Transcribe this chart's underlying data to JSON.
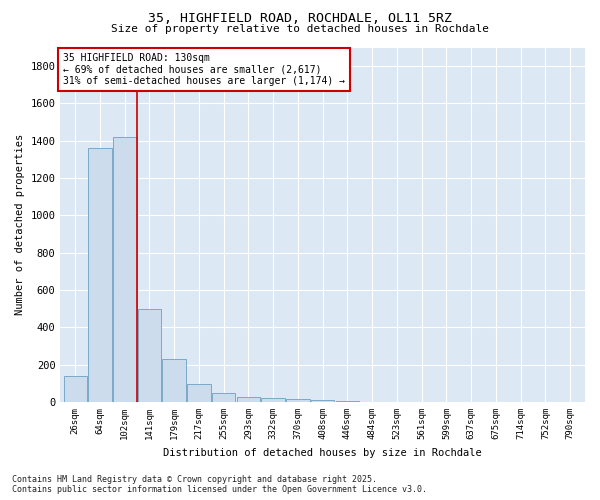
{
  "title_line1": "35, HIGHFIELD ROAD, ROCHDALE, OL11 5RZ",
  "title_line2": "Size of property relative to detached houses in Rochdale",
  "xlabel": "Distribution of detached houses by size in Rochdale",
  "ylabel": "Number of detached properties",
  "bar_color": "#ccdcec",
  "bar_edge_color": "#7aaac8",
  "background_color": "#dce8f4",
  "grid_color": "#ffffff",
  "categories": [
    "26sqm",
    "64sqm",
    "102sqm",
    "141sqm",
    "179sqm",
    "217sqm",
    "255sqm",
    "293sqm",
    "332sqm",
    "370sqm",
    "408sqm",
    "446sqm",
    "484sqm",
    "523sqm",
    "561sqm",
    "599sqm",
    "637sqm",
    "675sqm",
    "714sqm",
    "752sqm",
    "790sqm"
  ],
  "values": [
    140,
    1360,
    1420,
    500,
    230,
    95,
    50,
    25,
    20,
    15,
    10,
    5,
    2,
    0,
    0,
    0,
    0,
    0,
    0,
    0,
    0
  ],
  "ylim": [
    0,
    1900
  ],
  "yticks": [
    0,
    200,
    400,
    600,
    800,
    1000,
    1200,
    1400,
    1600,
    1800
  ],
  "vline_x": 2.5,
  "vline_color": "#cc0000",
  "annotation_text": "35 HIGHFIELD ROAD: 130sqm\n← 69% of detached houses are smaller (2,617)\n31% of semi-detached houses are larger (1,174) →",
  "annotation_box_facecolor": "#ffffff",
  "annotation_box_edgecolor": "#cc0000",
  "footer_line1": "Contains HM Land Registry data © Crown copyright and database right 2025.",
  "footer_line2": "Contains public sector information licensed under the Open Government Licence v3.0."
}
